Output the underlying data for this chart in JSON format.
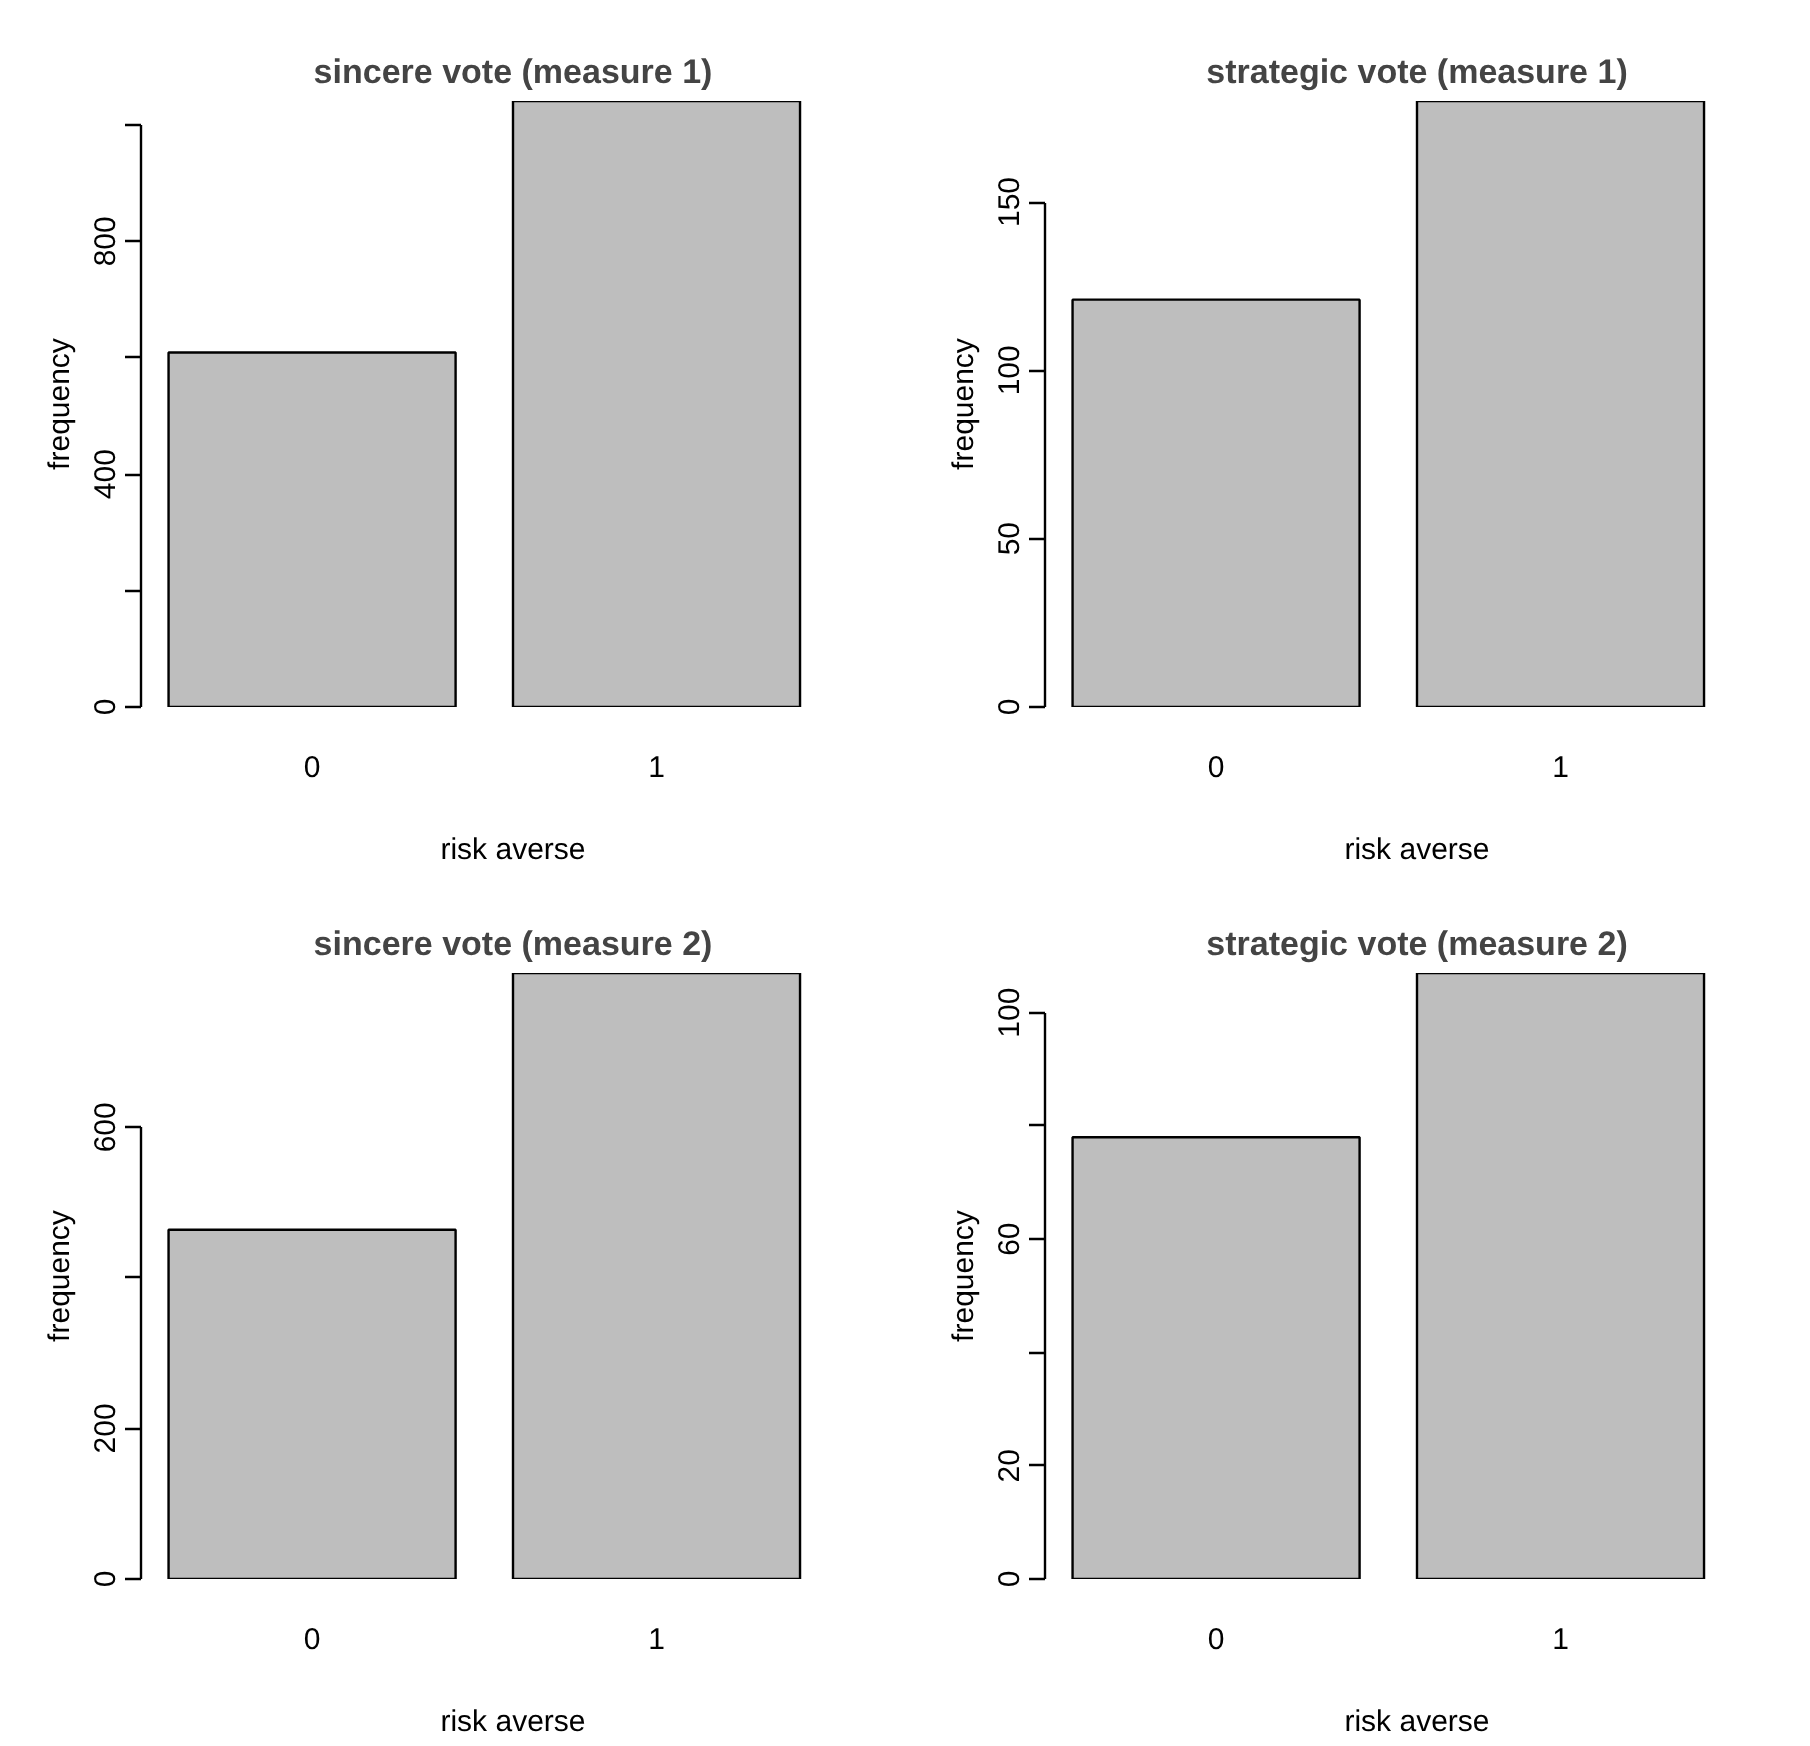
{
  "chart_data": [
    {
      "type": "bar",
      "title": "sincere vote (measure 1)",
      "xlabel": "risk averse",
      "ylabel": "frequency",
      "categories": [
        "0",
        "1"
      ],
      "values": [
        609,
        1041
      ],
      "color": "#bebebe",
      "ylim": [
        0,
        1041
      ],
      "yticks": [
        0,
        {
          "value": 200,
          "label": null
        },
        400,
        {
          "value": 600,
          "label": null
        },
        800,
        {
          "value": 1000,
          "label": null
        }
      ]
    },
    {
      "type": "bar",
      "title": "strategic vote (measure 1)",
      "xlabel": "risk averse",
      "ylabel": "frequency",
      "categories": [
        "0",
        "1"
      ],
      "values": [
        121,
        180
      ],
      "color": "#bebebe",
      "ylim": [
        0,
        180
      ],
      "yticks": [
        0,
        50,
        100,
        150
      ]
    },
    {
      "type": "bar",
      "title": "sincere vote (measure 2)",
      "xlabel": "risk averse",
      "ylabel": "frequency",
      "categories": [
        "0",
        "1"
      ],
      "values": [
        464,
        805
      ],
      "color": "#bebebe",
      "ylim": [
        0,
        805
      ],
      "yticks": [
        0,
        200,
        {
          "value": 400,
          "label": null
        },
        600
      ]
    },
    {
      "type": "bar",
      "title": "strategic vote (measure 2)",
      "xlabel": "risk averse",
      "ylabel": "frequency",
      "categories": [
        "0",
        "1"
      ],
      "values": [
        78,
        107
      ],
      "color": "#bebebe",
      "ylim": [
        0,
        107
      ],
      "yticks": [
        0,
        20,
        {
          "value": 40,
          "label": null
        },
        60,
        {
          "value": 80,
          "label": null
        },
        100
      ]
    }
  ]
}
